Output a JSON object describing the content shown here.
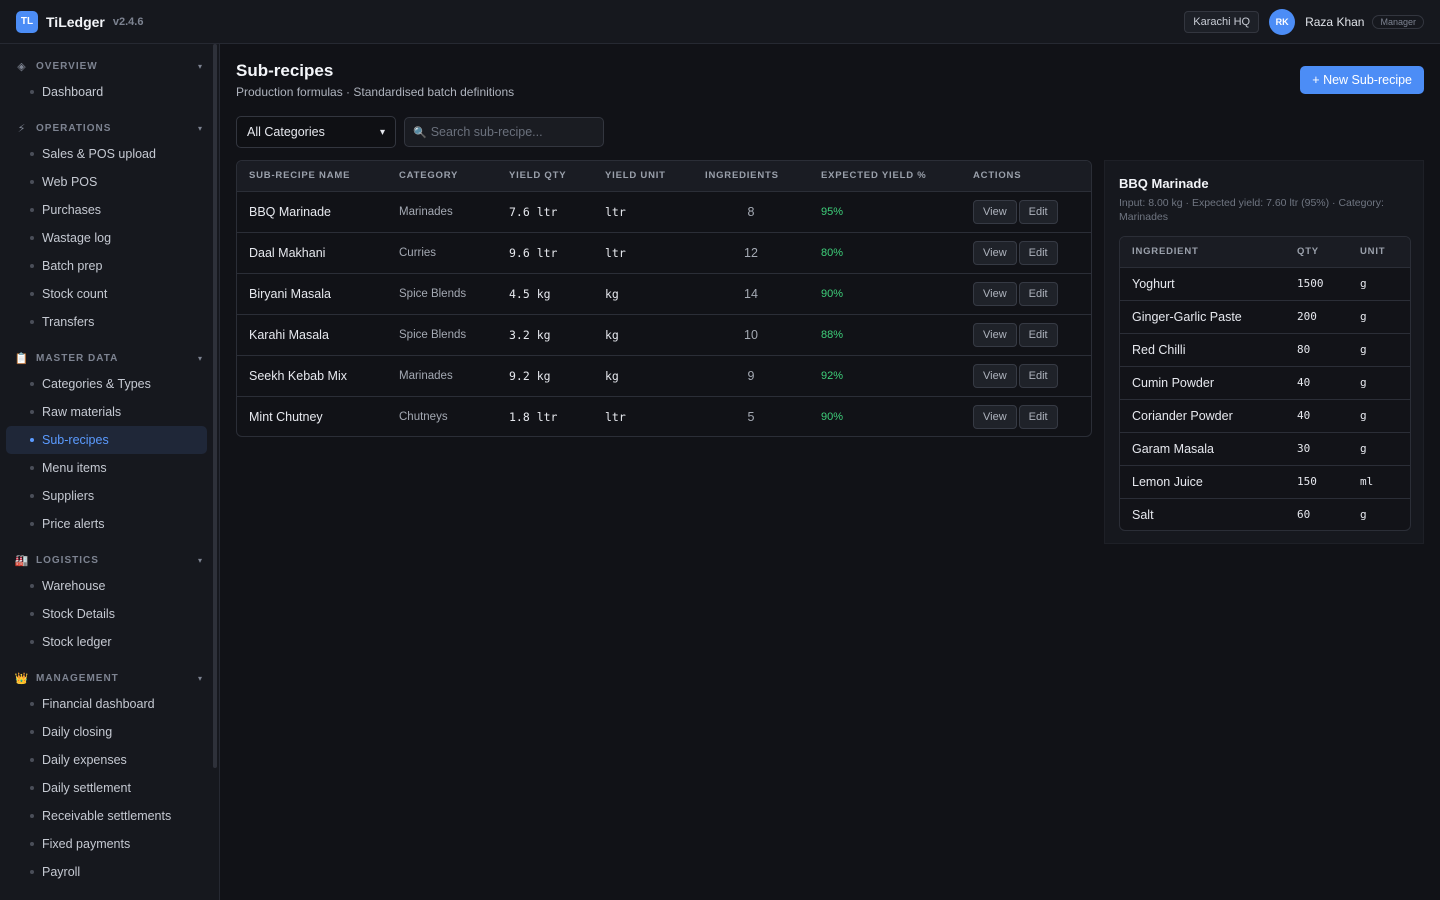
{
  "app": {
    "logo": "TL",
    "name": "TiLedger",
    "version": "v2.4.6",
    "branch": "Karachi HQ",
    "user_initials": "RK",
    "user_name": "Raza Khan",
    "user_role": "Manager",
    "accent": "#4c8df6"
  },
  "sidebar": {
    "groups": [
      {
        "label": "OVERVIEW",
        "icon": "◈",
        "items": [
          "Dashboard"
        ]
      },
      {
        "label": "OPERATIONS",
        "icon": "⚡",
        "items": [
          "Sales & POS upload",
          "Web POS",
          "Purchases",
          "Wastage log",
          "Batch prep",
          "Stock count",
          "Transfers"
        ]
      },
      {
        "label": "MASTER DATA",
        "icon": "📋",
        "items": [
          "Categories & Types",
          "Raw materials",
          "Sub-recipes",
          "Menu items",
          "Suppliers",
          "Price alerts"
        ]
      },
      {
        "label": "LOGISTICS",
        "icon": "🏭",
        "items": [
          "Warehouse",
          "Stock Details",
          "Stock ledger"
        ]
      },
      {
        "label": "MANAGEMENT",
        "icon": "👑",
        "items": [
          "Financial dashboard",
          "Daily closing",
          "Daily expenses",
          "Daily settlement",
          "Receivable settlements",
          "Fixed payments",
          "Payroll"
        ]
      }
    ],
    "active_item": "Sub-recipes"
  },
  "page": {
    "title": "Sub-recipes",
    "subtitle": "Production formulas · Standardised batch definitions",
    "new_button": "+ New Sub-recipe",
    "category_filter": "All Categories",
    "search_placeholder": "Search sub-recipe..."
  },
  "table": {
    "headers": {
      "name": "SUB-RECIPE NAME",
      "category": "CATEGORY",
      "yield_qty": "YIELD QTY",
      "yield_unit": "YIELD UNIT",
      "ingredients": "INGREDIENTS",
      "expected_yield": "EXPECTED YIELD %",
      "actions": "ACTIONS"
    },
    "view_label": "View",
    "edit_label": "Edit",
    "rows": [
      {
        "name": "BBQ Marinade",
        "category": "Marinades",
        "yield_qty": "7.6 ltr",
        "yield_unit": "ltr",
        "ingredients": "8",
        "expected_yield": "95%"
      },
      {
        "name": "Daal Makhani",
        "category": "Curries",
        "yield_qty": "9.6 ltr",
        "yield_unit": "ltr",
        "ingredients": "12",
        "expected_yield": "80%"
      },
      {
        "name": "Biryani Masala",
        "category": "Spice Blends",
        "yield_qty": "4.5 kg",
        "yield_unit": "kg",
        "ingredients": "14",
        "expected_yield": "90%"
      },
      {
        "name": "Karahi Masala",
        "category": "Spice Blends",
        "yield_qty": "3.2 kg",
        "yield_unit": "kg",
        "ingredients": "10",
        "expected_yield": "88%"
      },
      {
        "name": "Seekh Kebab Mix",
        "category": "Marinades",
        "yield_qty": "9.2 kg",
        "yield_unit": "kg",
        "ingredients": "9",
        "expected_yield": "92%"
      },
      {
        "name": "Mint Chutney",
        "category": "Chutneys",
        "yield_qty": "1.8 ltr",
        "yield_unit": "ltr",
        "ingredients": "5",
        "expected_yield": "90%"
      }
    ]
  },
  "detail": {
    "title": "BBQ Marinade",
    "meta": "Input: 8.00 kg · Expected yield: 7.60 ltr (95%) · Category: Marinades",
    "headers": {
      "ingredient": "INGREDIENT",
      "qty": "QTY",
      "unit": "UNIT"
    },
    "ingredients": [
      {
        "name": "Yoghurt",
        "qty": "1500",
        "unit": "g"
      },
      {
        "name": "Ginger-Garlic Paste",
        "qty": "200",
        "unit": "g"
      },
      {
        "name": "Red Chilli",
        "qty": "80",
        "unit": "g"
      },
      {
        "name": "Cumin Powder",
        "qty": "40",
        "unit": "g"
      },
      {
        "name": "Coriander Powder",
        "qty": "40",
        "unit": "g"
      },
      {
        "name": "Garam Masala",
        "qty": "30",
        "unit": "g"
      },
      {
        "name": "Lemon Juice",
        "qty": "150",
        "unit": "ml"
      },
      {
        "name": "Salt",
        "qty": "60",
        "unit": "g"
      }
    ]
  }
}
